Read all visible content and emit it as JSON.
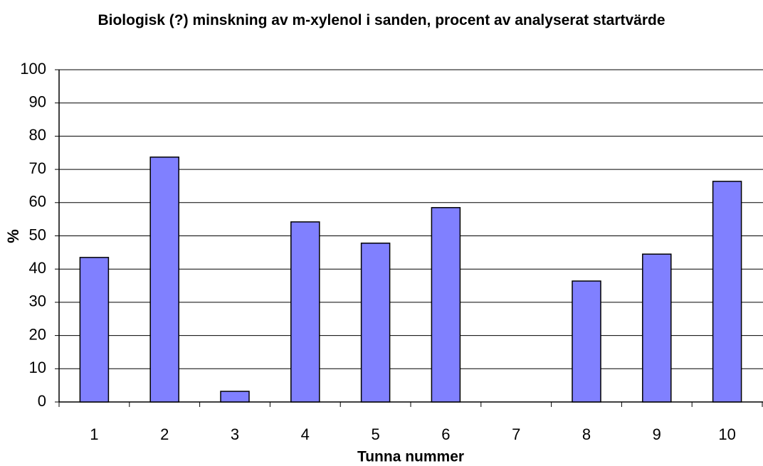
{
  "chart_data": {
    "type": "bar",
    "title": "Biologisk (?) minskning av m-xylenol i sanden, procent av analyserat startvärde",
    "x_label": "Tunna nummer",
    "y_label": "%",
    "categories": [
      "1",
      "2",
      "3",
      "4",
      "5",
      "6",
      "7",
      "8",
      "9",
      "10"
    ],
    "values": [
      43.5,
      73.7,
      3.2,
      54.2,
      47.8,
      58.5,
      0,
      36.4,
      44.5,
      66.4
    ],
    "color": "#8080ff",
    "ylim": [
      0,
      100
    ],
    "yticks": [
      0,
      10,
      20,
      30,
      40,
      50,
      60,
      70,
      80,
      90,
      100
    ],
    "grid": true
  }
}
